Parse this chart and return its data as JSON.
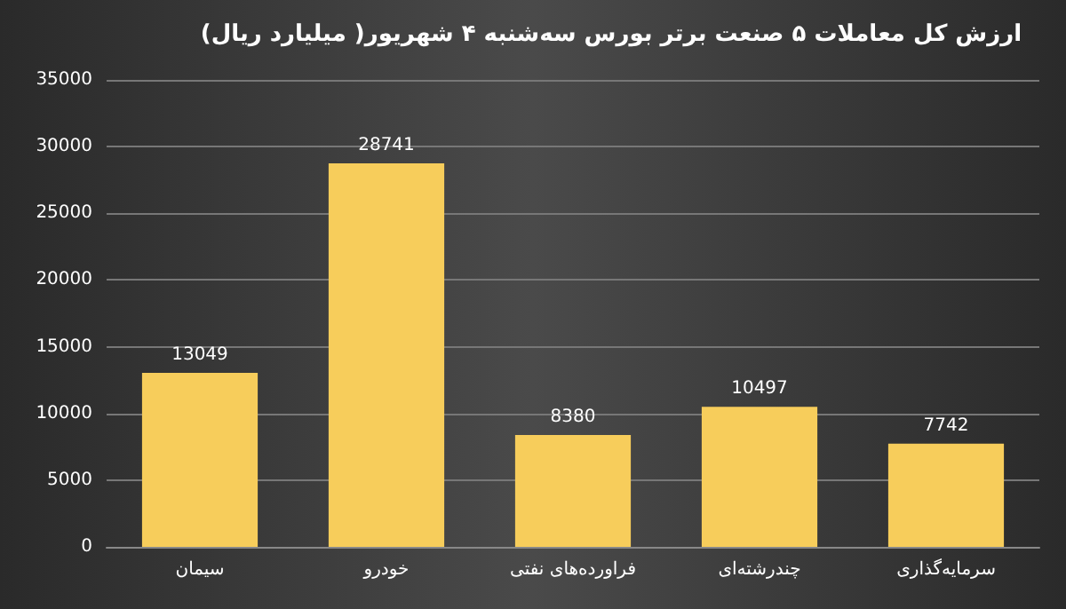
{
  "chart_data": {
    "type": "bar",
    "title": "ارزش کل معاملات ۵ صنعت برتر بورس سه‌شنبه ۴ شهریور( میلیارد ریال)",
    "categories": [
      "سیمان",
      "خودرو",
      "فراورده‌های نفتی",
      "چندرشته‌ای",
      "سرمایه‌گذاری"
    ],
    "values": [
      13049,
      28741,
      8380,
      10497,
      7742
    ],
    "color": "#f7cd5b",
    "ylim": [
      0,
      35000
    ],
    "yticks": [
      0,
      5000,
      10000,
      15000,
      20000,
      25000,
      30000,
      35000
    ],
    "grid": "y",
    "data_labels": true
  }
}
